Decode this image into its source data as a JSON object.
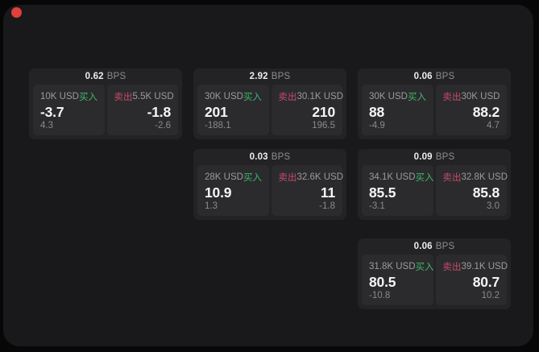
{
  "labels": {
    "bps": "BPS",
    "buy": "买入",
    "sell": "卖出"
  },
  "colors": {
    "buy_green": "#3db868",
    "sell_red": "#c84a66",
    "indicator_red": "#e2403a",
    "window_bg": "#19191b",
    "card_bg": "#232326",
    "panel_bg": "#2b2b2e"
  },
  "cards": [
    {
      "bps": "0.62",
      "buy": {
        "size": "10K USD",
        "price": "-3.7",
        "delta": "4.3"
      },
      "sell": {
        "size": "5.5K USD",
        "price": "-1.8",
        "delta": "-2.6"
      }
    },
    {
      "bps": "2.92",
      "buy": {
        "size": "30K USD",
        "price": "201",
        "delta": "-188.1"
      },
      "sell": {
        "size": "30.1K USD",
        "price": "210",
        "delta": "196.5"
      }
    },
    {
      "bps": "0.06",
      "buy": {
        "size": "30K USD",
        "price": "88",
        "delta": "-4.9"
      },
      "sell": {
        "size": "30K USD",
        "price": "88.2",
        "delta": "4.7"
      }
    },
    {
      "bps": "0.03",
      "buy": {
        "size": "28K USD",
        "price": "10.9",
        "delta": "1.3"
      },
      "sell": {
        "size": "32.6K USD",
        "price": "11",
        "delta": "-1.8"
      }
    },
    {
      "bps": "0.09",
      "buy": {
        "size": "34.1K USD",
        "price": "85.5",
        "delta": "-3.1"
      },
      "sell": {
        "size": "32.8K USD",
        "price": "85.8",
        "delta": "3.0"
      }
    },
    {
      "bps": "0.06",
      "buy": {
        "size": "31.8K USD",
        "price": "80.5",
        "delta": "-10.8"
      },
      "sell": {
        "size": "39.1K USD",
        "price": "80.7",
        "delta": "10.2"
      }
    }
  ]
}
